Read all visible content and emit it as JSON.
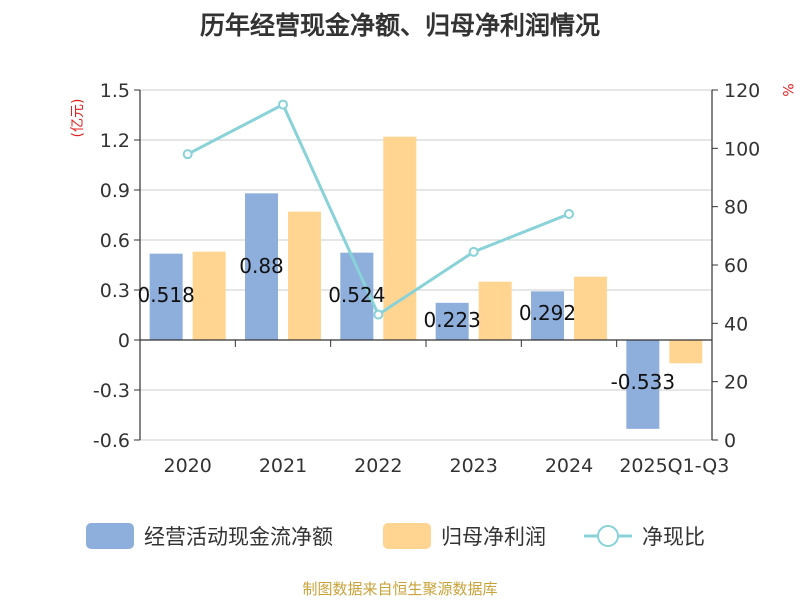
{
  "title": "历年经营现金净额、归母净利润情况",
  "source": "制图数据来自恒生聚源数据库",
  "colors": {
    "cash": "#8eaedc",
    "profit": "#ffd591",
    "ratio": "#88d2d8",
    "unit_label": "#e02020",
    "axis": "#333333",
    "grid": "#cccccc",
    "source_text": "#c9a23a"
  },
  "chart_data": {
    "type": "bar",
    "title": "历年经营现金净额、归母净利润情况",
    "categories": [
      "2020",
      "2021",
      "2022",
      "2023",
      "2024",
      "2025Q1-Q3"
    ],
    "left_axis": {
      "unit": "(亿元)",
      "ylim": [
        -0.6,
        1.5
      ],
      "ticks": [
        "1.5",
        "1.2",
        "0.9",
        "0.6",
        "0.3",
        "0",
        "-0.3",
        "-0.6"
      ],
      "tick_values": [
        1.5,
        1.2,
        0.9,
        0.6,
        0.3,
        0,
        -0.3,
        -0.6
      ]
    },
    "right_axis": {
      "unit": "%",
      "ylim": [
        0,
        120
      ],
      "ticks": [
        "120",
        "100",
        "80",
        "60",
        "40",
        "20",
        "0"
      ],
      "tick_values": [
        120,
        100,
        80,
        60,
        40,
        20,
        0
      ]
    },
    "grid": true,
    "legend_placement": "bottom",
    "series": [
      {
        "name": "经营活动现金流净额",
        "type": "bar",
        "axis": "left",
        "values": [
          0.518,
          0.88,
          0.524,
          0.223,
          0.292,
          -0.533
        ],
        "labels": [
          "0.518",
          "0.88",
          "0.524",
          "0.223",
          "0.292",
          "-0.533"
        ]
      },
      {
        "name": "归母净利润",
        "type": "bar",
        "axis": "left",
        "values": [
          0.53,
          0.77,
          1.22,
          0.35,
          0.38,
          -0.14
        ]
      },
      {
        "name": "净现比",
        "type": "line",
        "axis": "right",
        "values": [
          98,
          115,
          43,
          64.5,
          77.5,
          null
        ]
      }
    ]
  }
}
